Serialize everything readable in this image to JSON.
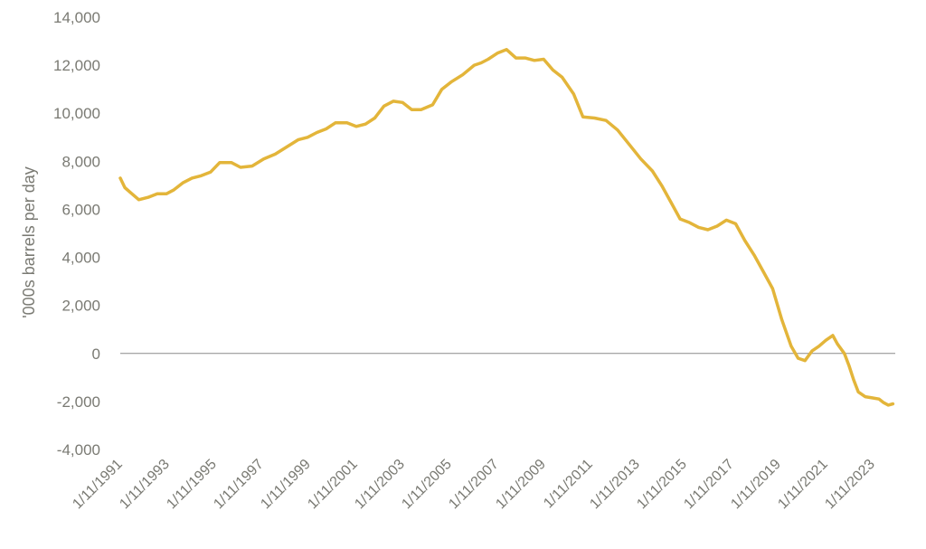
{
  "chart_data": {
    "type": "line",
    "title": "",
    "xlabel": "",
    "ylabel": "'000s barrels per day",
    "ylim": [
      -4000,
      14000
    ],
    "yticks": [
      -4000,
      -2000,
      0,
      2000,
      4000,
      6000,
      8000,
      10000,
      12000,
      14000
    ],
    "ytick_labels": [
      "-4,000",
      "-2,000",
      "0",
      "2,000",
      "4,000",
      "6,000",
      "8,000",
      "10,000",
      "12,000",
      "14,000"
    ],
    "xlim": [
      1991.0,
      2024.5
    ],
    "xtick_labels": [
      "1/11/1991",
      "1/11/1993",
      "1/11/1995",
      "1/11/1997",
      "1/11/1999",
      "1/11/2001",
      "1/11/2003",
      "1/11/2005",
      "1/11/2007",
      "1/11/2009",
      "1/11/2011",
      "1/11/2013",
      "1/11/2015",
      "1/11/2017",
      "1/11/2019",
      "1/11/2021",
      "1/11/2023"
    ],
    "grid": false,
    "zero_line": true,
    "legend": "none",
    "colors": {
      "series": "#E3B53A",
      "axis_text": "#7A7A73",
      "zero_line": "#8A8A8A"
    },
    "series": [
      {
        "x": [
          1991.0,
          1991.2,
          1991.5,
          1991.8,
          1992.2,
          1992.6,
          1993.0,
          1993.3,
          1993.7,
          1994.1,
          1994.5,
          1994.9,
          1995.3,
          1995.8,
          1996.2,
          1996.7,
          1997.2,
          1997.7,
          1998.2,
          1998.7,
          1999.1,
          1999.5,
          1999.9,
          2000.3,
          2000.8,
          2001.2,
          2001.6,
          2002.0,
          2002.4,
          2002.8,
          2003.2,
          2003.6,
          2004.0,
          2004.5,
          2004.9,
          2005.3,
          2005.8,
          2006.3,
          2006.6,
          2006.9,
          2007.3,
          2007.7,
          2008.1,
          2008.5,
          2008.9,
          2009.3,
          2009.7,
          2010.1,
          2010.6,
          2011.0,
          2011.5,
          2012.0,
          2012.5,
          2013.0,
          2013.5,
          2014.0,
          2014.4,
          2014.8,
          2015.2,
          2015.6,
          2016.0,
          2016.4,
          2016.8,
          2017.2,
          2017.6,
          2018.0,
          2018.4,
          2018.8,
          2019.2,
          2019.6,
          2020.0,
          2020.3,
          2020.6,
          2020.9,
          2021.2,
          2021.5,
          2021.8,
          2022.0,
          2022.3,
          2022.5,
          2022.7,
          2022.9,
          2023.2,
          2023.5,
          2023.8,
          2024.0,
          2024.2,
          2024.4
        ],
        "y": [
          7300,
          6900,
          6650,
          6400,
          6500,
          6650,
          6650,
          6800,
          7100,
          7300,
          7400,
          7550,
          7950,
          7950,
          7750,
          7800,
          8100,
          8300,
          8600,
          8900,
          9000,
          9200,
          9350,
          9600,
          9600,
          9450,
          9550,
          9800,
          10300,
          10500,
          10450,
          10150,
          10150,
          10350,
          11000,
          11300,
          11600,
          12000,
          12100,
          12250,
          12500,
          12650,
          12300,
          12300,
          12200,
          12250,
          11800,
          11500,
          10800,
          9850,
          9800,
          9700,
          9300,
          8700,
          8100,
          7600,
          7000,
          6300,
          5600,
          5450,
          5250,
          5150,
          5300,
          5550,
          5400,
          4700,
          4100,
          3400,
          2700,
          1400,
          300,
          -200,
          -300,
          100,
          300,
          550,
          750,
          400,
          0,
          -500,
          -1100,
          -1600,
          -1800,
          -1850,
          -1900,
          -2050,
          -2150,
          -2100
        ]
      }
    ]
  }
}
